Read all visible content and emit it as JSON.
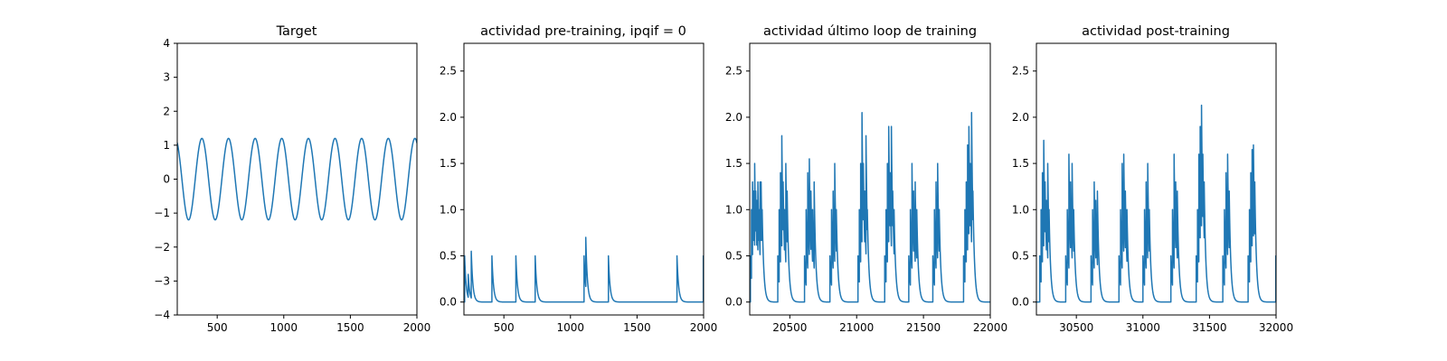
{
  "chart_data": [
    {
      "type": "line",
      "title": "Target",
      "xlim": [
        200,
        2000
      ],
      "ylim": [
        -4,
        4
      ],
      "xticks": [
        500,
        1000,
        1500,
        2000
      ],
      "yticks": [
        -4,
        -3,
        -2,
        -1,
        0,
        1,
        2,
        3,
        4
      ],
      "color": "#1f77b4",
      "series": [
        {
          "kind": "sine",
          "amplitude": 1.2,
          "period": 200,
          "phase_offset": 135,
          "x_range": [
            200,
            2000
          ]
        }
      ]
    },
    {
      "type": "line",
      "title": "actividad pre-training, ipqif = 0",
      "xlim": [
        200,
        2000
      ],
      "ylim": [
        -0.14,
        2.8
      ],
      "xticks": [
        500,
        1000,
        1500,
        2000
      ],
      "yticks": [
        0.0,
        0.5,
        1.0,
        1.5,
        2.0,
        2.5
      ],
      "color": "#1f77b4",
      "series": [
        {
          "kind": "decaying_spikes",
          "tau": 12,
          "x_range": [
            200,
            2000
          ],
          "spikes": [
            [
              205,
              0.5
            ],
            [
              232,
              0.3
            ],
            [
              255,
              0.55
            ],
            [
              410,
              0.5
            ],
            [
              590,
              0.5
            ],
            [
              735,
              0.5
            ],
            [
              1102,
              0.5
            ],
            [
              1115,
              0.7
            ],
            [
              1285,
              0.5
            ],
            [
              1800,
              0.5
            ],
            [
              1998,
              0.5
            ]
          ]
        }
      ]
    },
    {
      "type": "line",
      "title": "actividad último loop de training",
      "xlim": [
        20200,
        22000
      ],
      "ylim": [
        -0.14,
        2.8
      ],
      "xticks": [
        20500,
        21000,
        21500,
        22000
      ],
      "yticks": [
        0.0,
        0.5,
        1.0,
        1.5,
        2.0,
        2.5
      ],
      "color": "#1f77b4",
      "series": [
        {
          "kind": "decaying_spikes",
          "tau": 12,
          "x_range": [
            20200,
            22000
          ],
          "spikes": [
            [
              20205,
              0.5
            ],
            [
              20213,
              1.0
            ],
            [
              20221,
              1.3
            ],
            [
              20229,
              1.2
            ],
            [
              20237,
              1.5
            ],
            [
              20245,
              1.2
            ],
            [
              20253,
              1.1
            ],
            [
              20261,
              1.3
            ],
            [
              20269,
              1.0
            ],
            [
              20277,
              1.3
            ],
            [
              20285,
              1.3
            ],
            [
              20293,
              1.0
            ],
            [
              20410,
              0.5
            ],
            [
              20420,
              1.0
            ],
            [
              20430,
              1.4
            ],
            [
              20440,
              1.8
            ],
            [
              20450,
              1.3
            ],
            [
              20460,
              1.0
            ],
            [
              20470,
              1.5
            ],
            [
              20480,
              1.2
            ],
            [
              20610,
              0.5
            ],
            [
              20622,
              1.0
            ],
            [
              20634,
              1.4
            ],
            [
              20646,
              1.55
            ],
            [
              20658,
              1.2
            ],
            [
              20670,
              1.0
            ],
            [
              20682,
              1.3
            ],
            [
              20800,
              0.5
            ],
            [
              20812,
              1.0
            ],
            [
              20824,
              1.2
            ],
            [
              20836,
              1.5
            ],
            [
              20848,
              1.0
            ],
            [
              21010,
              0.5
            ],
            [
              21020,
              1.0
            ],
            [
              21030,
              1.5
            ],
            [
              21040,
              2.05
            ],
            [
              21050,
              1.5
            ],
            [
              21060,
              1.2
            ],
            [
              21070,
              1.8
            ],
            [
              21080,
              1.0
            ],
            [
              21210,
              0.5
            ],
            [
              21220,
              1.0
            ],
            [
              21230,
              1.5
            ],
            [
              21240,
              1.9
            ],
            [
              21250,
              1.4
            ],
            [
              21260,
              1.9
            ],
            [
              21270,
              1.2
            ],
            [
              21280,
              1.0
            ],
            [
              21390,
              0.5
            ],
            [
              21402,
              1.0
            ],
            [
              21414,
              1.5
            ],
            [
              21426,
              1.2
            ],
            [
              21438,
              1.3
            ],
            [
              21450,
              1.0
            ],
            [
              21570,
              0.5
            ],
            [
              21582,
              1.0
            ],
            [
              21594,
              1.3
            ],
            [
              21606,
              1.5
            ],
            [
              21618,
              1.0
            ],
            [
              21800,
              0.5
            ],
            [
              21810,
              1.0
            ],
            [
              21820,
              1.3
            ],
            [
              21830,
              1.7
            ],
            [
              21840,
              1.9
            ],
            [
              21850,
              1.5
            ],
            [
              21860,
              2.05
            ],
            [
              21870,
              1.2
            ]
          ]
        }
      ]
    },
    {
      "type": "line",
      "title": "actividad post-training",
      "xlim": [
        30200,
        32000
      ],
      "ylim": [
        -0.14,
        2.8
      ],
      "xticks": [
        30500,
        31000,
        31500,
        32000
      ],
      "yticks": [
        0.0,
        0.5,
        1.0,
        1.5,
        2.0,
        2.5
      ],
      "color": "#1f77b4",
      "series": [
        {
          "kind": "decaying_spikes",
          "tau": 12,
          "x_range": [
            30200,
            32000
          ],
          "spikes": [
            [
              30225,
              0.5
            ],
            [
              30235,
              1.0
            ],
            [
              30245,
              1.4
            ],
            [
              30255,
              1.75
            ],
            [
              30265,
              1.3
            ],
            [
              30275,
              1.1
            ],
            [
              30285,
              1.5
            ],
            [
              30295,
              1.0
            ],
            [
              30420,
              0.5
            ],
            [
              30432,
              1.0
            ],
            [
              30444,
              1.6
            ],
            [
              30456,
              1.3
            ],
            [
              30468,
              1.5
            ],
            [
              30480,
              1.0
            ],
            [
              30610,
              0.5
            ],
            [
              30622,
              1.0
            ],
            [
              30634,
              1.3
            ],
            [
              30646,
              1.1
            ],
            [
              30658,
              1.2
            ],
            [
              30820,
              0.5
            ],
            [
              30832,
              1.0
            ],
            [
              30844,
              1.5
            ],
            [
              30856,
              1.6
            ],
            [
              30868,
              1.2
            ],
            [
              30880,
              1.0
            ],
            [
              31000,
              0.5
            ],
            [
              31012,
              1.0
            ],
            [
              31024,
              1.3
            ],
            [
              31036,
              1.5
            ],
            [
              31048,
              1.0
            ],
            [
              31210,
              0.5
            ],
            [
              31222,
              1.0
            ],
            [
              31234,
              1.6
            ],
            [
              31246,
              1.3
            ],
            [
              31258,
              1.2
            ],
            [
              31400,
              0.5
            ],
            [
              31410,
              1.0
            ],
            [
              31420,
              1.6
            ],
            [
              31430,
              1.9
            ],
            [
              31440,
              2.13
            ],
            [
              31450,
              1.6
            ],
            [
              31460,
              1.3
            ],
            [
              31600,
              0.5
            ],
            [
              31612,
              1.0
            ],
            [
              31624,
              1.4
            ],
            [
              31636,
              1.6
            ],
            [
              31648,
              1.2
            ],
            [
              31790,
              0.5
            ],
            [
              31800,
              1.0
            ],
            [
              31810,
              1.4
            ],
            [
              31820,
              1.65
            ],
            [
              31830,
              1.7
            ],
            [
              31840,
              1.3
            ],
            [
              31998,
              0.5
            ]
          ]
        }
      ]
    }
  ]
}
